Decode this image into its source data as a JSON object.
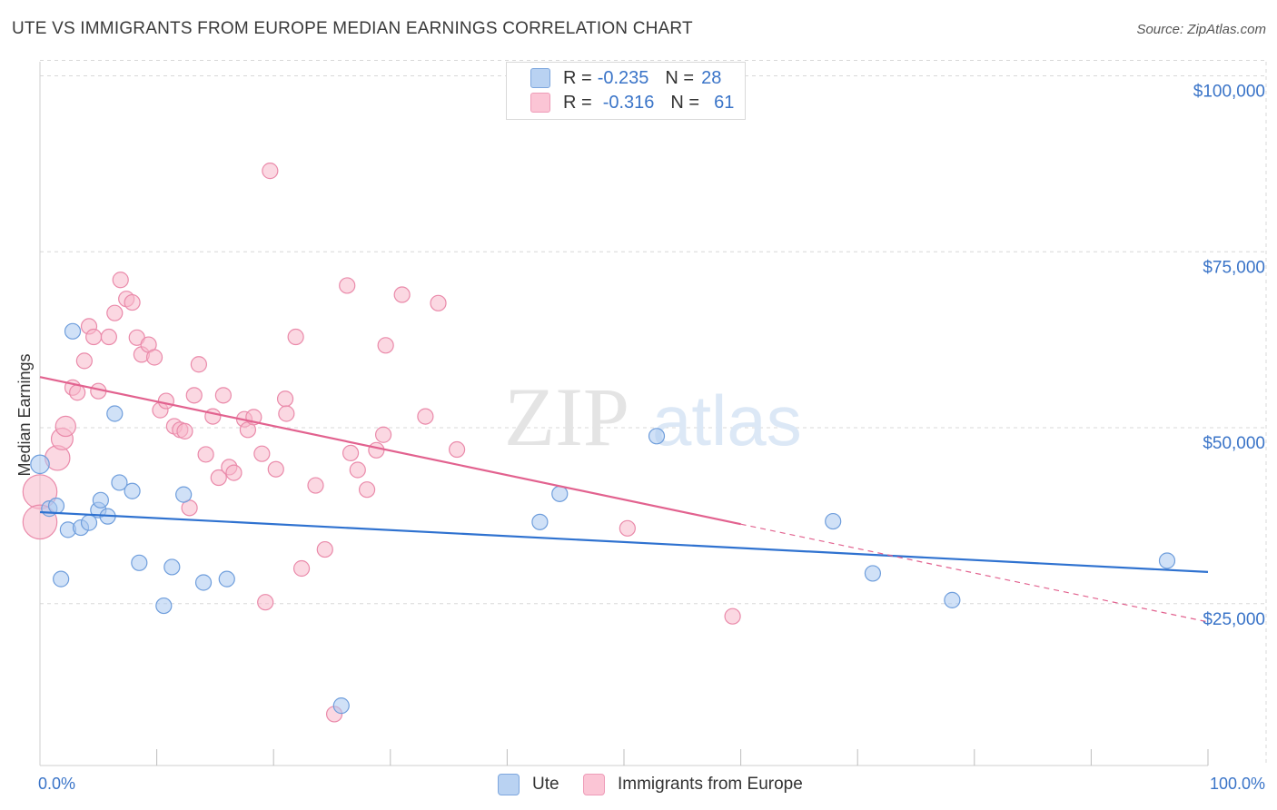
{
  "title": "UTE VS IMMIGRANTS FROM EUROPE MEDIAN EARNINGS CORRELATION CHART",
  "source": "Source: ZipAtlas.com",
  "watermark": {
    "zip": "ZIP",
    "atlas": "atlas"
  },
  "legend": {
    "rows": [
      {
        "r_label": "R =",
        "r_value": "-0.235",
        "n_label": "N =",
        "n_value": "28"
      },
      {
        "r_label": "R =",
        "r_value": "-0.316",
        "n_label": "N =",
        "n_value": "61"
      }
    ]
  },
  "bottom_legend": {
    "ute": "Ute",
    "europe": "Immigrants from Europe"
  },
  "colors": {
    "ute_fill": "#aac8f0",
    "ute_stroke": "#6f9edc",
    "ute_line": "#2f72d0",
    "eu_fill": "#f7b8cb",
    "eu_stroke": "#ea8aaa",
    "eu_line": "#e2628f",
    "axis_text": "#3a74c8",
    "grid": "#d8d8d8"
  },
  "chart_data": {
    "type": "scatter",
    "title": "UTE VS IMMIGRANTS FROM EUROPE MEDIAN EARNINGS CORRELATION CHART",
    "xlabel": "",
    "ylabel": "Median Earnings",
    "xlim": [
      0,
      100
    ],
    "ylim": [
      2000,
      102000
    ],
    "x_tick_labels": [
      "0.0%",
      "100.0%"
    ],
    "y_ticks": [
      25000,
      50000,
      75000,
      100000
    ],
    "y_tick_labels": [
      "$25,000",
      "$50,000",
      "$75,000",
      "$100,000"
    ],
    "series": [
      {
        "name": "Ute",
        "r": -0.235,
        "n": 28,
        "trend": {
          "x": [
            0,
            100
          ],
          "y": [
            38000,
            29500
          ]
        },
        "points": [
          {
            "x": 0.0,
            "y": 44800,
            "s": 1.2
          },
          {
            "x": 0.8,
            "y": 38500,
            "s": 1
          },
          {
            "x": 1.4,
            "y": 38900,
            "s": 1
          },
          {
            "x": 1.8,
            "y": 28500,
            "s": 1
          },
          {
            "x": 2.4,
            "y": 35500,
            "s": 1
          },
          {
            "x": 2.8,
            "y": 63700,
            "s": 1
          },
          {
            "x": 3.5,
            "y": 35800,
            "s": 1
          },
          {
            "x": 4.2,
            "y": 36500,
            "s": 1
          },
          {
            "x": 5.0,
            "y": 38300,
            "s": 1
          },
          {
            "x": 5.2,
            "y": 39700,
            "s": 1
          },
          {
            "x": 5.8,
            "y": 37400,
            "s": 1
          },
          {
            "x": 6.4,
            "y": 52000,
            "s": 1
          },
          {
            "x": 6.8,
            "y": 42200,
            "s": 1
          },
          {
            "x": 7.9,
            "y": 41000,
            "s": 1
          },
          {
            "x": 8.5,
            "y": 30800,
            "s": 1
          },
          {
            "x": 10.6,
            "y": 24700,
            "s": 1
          },
          {
            "x": 11.3,
            "y": 30200,
            "s": 1
          },
          {
            "x": 12.3,
            "y": 40500,
            "s": 1
          },
          {
            "x": 14.0,
            "y": 28000,
            "s": 1
          },
          {
            "x": 16.0,
            "y": 28500,
            "s": 1
          },
          {
            "x": 25.8,
            "y": 10500,
            "s": 1
          },
          {
            "x": 42.8,
            "y": 36600,
            "s": 1
          },
          {
            "x": 44.5,
            "y": 40600,
            "s": 1
          },
          {
            "x": 52.8,
            "y": 48800,
            "s": 1
          },
          {
            "x": 67.9,
            "y": 36700,
            "s": 1
          },
          {
            "x": 71.3,
            "y": 29300,
            "s": 1
          },
          {
            "x": 78.1,
            "y": 25500,
            "s": 1
          },
          {
            "x": 96.5,
            "y": 31100,
            "s": 1
          }
        ]
      },
      {
        "name": "Immigrants from Europe",
        "r": -0.316,
        "n": 61,
        "trend": {
          "x": [
            0,
            60
          ],
          "y": [
            57200,
            36300
          ],
          "dashed_x": [
            60,
            100
          ],
          "dashed_y": [
            36300,
            22400
          ]
        },
        "points": [
          {
            "x": 0.0,
            "y": 40900,
            "s": 2.2
          },
          {
            "x": 0.0,
            "y": 36600,
            "s": 2.2
          },
          {
            "x": 1.5,
            "y": 45700,
            "s": 1.6
          },
          {
            "x": 1.9,
            "y": 48400,
            "s": 1.4
          },
          {
            "x": 2.2,
            "y": 50200,
            "s": 1.3
          },
          {
            "x": 2.8,
            "y": 55700,
            "s": 1
          },
          {
            "x": 3.2,
            "y": 55000,
            "s": 1
          },
          {
            "x": 3.8,
            "y": 59500,
            "s": 1
          },
          {
            "x": 4.2,
            "y": 64400,
            "s": 1
          },
          {
            "x": 4.6,
            "y": 62900,
            "s": 1
          },
          {
            "x": 5.0,
            "y": 55200,
            "s": 1
          },
          {
            "x": 5.9,
            "y": 62900,
            "s": 1
          },
          {
            "x": 6.4,
            "y": 66300,
            "s": 1
          },
          {
            "x": 6.9,
            "y": 71000,
            "s": 1
          },
          {
            "x": 7.4,
            "y": 68300,
            "s": 1
          },
          {
            "x": 7.9,
            "y": 67800,
            "s": 1
          },
          {
            "x": 8.3,
            "y": 62800,
            "s": 1
          },
          {
            "x": 8.7,
            "y": 60400,
            "s": 1
          },
          {
            "x": 9.3,
            "y": 61800,
            "s": 1
          },
          {
            "x": 9.8,
            "y": 60000,
            "s": 1
          },
          {
            "x": 10.3,
            "y": 52500,
            "s": 1
          },
          {
            "x": 10.8,
            "y": 53800,
            "s": 1
          },
          {
            "x": 11.5,
            "y": 50200,
            "s": 1
          },
          {
            "x": 12.0,
            "y": 49700,
            "s": 1
          },
          {
            "x": 12.4,
            "y": 49500,
            "s": 1
          },
          {
            "x": 12.8,
            "y": 38600,
            "s": 1
          },
          {
            "x": 13.2,
            "y": 54600,
            "s": 1
          },
          {
            "x": 13.6,
            "y": 59000,
            "s": 1
          },
          {
            "x": 14.2,
            "y": 46200,
            "s": 1
          },
          {
            "x": 14.8,
            "y": 51600,
            "s": 1
          },
          {
            "x": 15.3,
            "y": 42900,
            "s": 1
          },
          {
            "x": 15.7,
            "y": 54600,
            "s": 1
          },
          {
            "x": 16.2,
            "y": 44400,
            "s": 1
          },
          {
            "x": 16.6,
            "y": 43600,
            "s": 1
          },
          {
            "x": 17.5,
            "y": 51200,
            "s": 1
          },
          {
            "x": 17.8,
            "y": 49700,
            "s": 1
          },
          {
            "x": 18.3,
            "y": 51500,
            "s": 1
          },
          {
            "x": 19.0,
            "y": 46300,
            "s": 1
          },
          {
            "x": 19.3,
            "y": 25200,
            "s": 1
          },
          {
            "x": 19.7,
            "y": 86500,
            "s": 1
          },
          {
            "x": 20.2,
            "y": 44100,
            "s": 1
          },
          {
            "x": 21.0,
            "y": 54100,
            "s": 1
          },
          {
            "x": 21.1,
            "y": 52000,
            "s": 1
          },
          {
            "x": 21.9,
            "y": 62900,
            "s": 1
          },
          {
            "x": 22.4,
            "y": 30000,
            "s": 1
          },
          {
            "x": 23.6,
            "y": 41800,
            "s": 1
          },
          {
            "x": 24.4,
            "y": 32700,
            "s": 1
          },
          {
            "x": 25.2,
            "y": 9300,
            "s": 1
          },
          {
            "x": 26.3,
            "y": 70200,
            "s": 1
          },
          {
            "x": 26.6,
            "y": 46400,
            "s": 1
          },
          {
            "x": 27.2,
            "y": 44000,
            "s": 1
          },
          {
            "x": 28.0,
            "y": 41200,
            "s": 1
          },
          {
            "x": 28.8,
            "y": 46800,
            "s": 1
          },
          {
            "x": 29.4,
            "y": 49000,
            "s": 1
          },
          {
            "x": 29.6,
            "y": 61700,
            "s": 1
          },
          {
            "x": 31.0,
            "y": 68900,
            "s": 1
          },
          {
            "x": 33.0,
            "y": 51600,
            "s": 1
          },
          {
            "x": 34.1,
            "y": 67700,
            "s": 1
          },
          {
            "x": 35.7,
            "y": 46900,
            "s": 1
          },
          {
            "x": 50.3,
            "y": 35700,
            "s": 1
          },
          {
            "x": 59.3,
            "y": 23200,
            "s": 1
          }
        ]
      }
    ]
  }
}
